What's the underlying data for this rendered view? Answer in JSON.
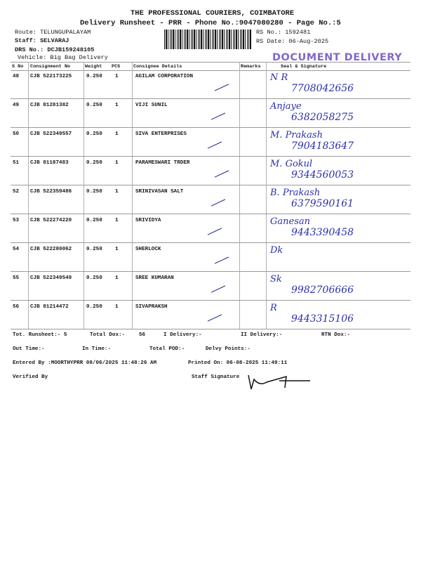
{
  "header": {
    "company": "THE PROFESSIONAL COURIERS, COIMBATORE",
    "subtitle": "Delivery Runsheet - PRR - Phone No.:9047080280 - Page No.:5",
    "route": "Route: TELUNGUPALAYAM",
    "staff_label": "Staff:",
    "staff": "SELVARAJ",
    "drs": "DRS No.: DCJB159248105",
    "vehicle": "Vehicle: Big Bag Delivery",
    "rs_no": "RS No.: 1592481",
    "rs_date": "RS Date: 06-Aug-2025",
    "stamp": "DOCUMENT DELIVERY"
  },
  "table": {
    "columns": [
      "S No",
      "Consignment No",
      "Weight",
      "PCS",
      "Consignee Details",
      "Remarks",
      "Seal & Signature"
    ],
    "rows": [
      {
        "sno": "48",
        "cn": "CJB 522173225",
        "weight": "0.250",
        "pcs": "1",
        "consignee": "AGILAM CORPORATION",
        "hand_name": "N R",
        "hand_phone": "7708042656"
      },
      {
        "sno": "49",
        "cn": "CJB 81281382",
        "weight": "0.250",
        "pcs": "1",
        "consignee": "VIJI SUNIL",
        "hand_name": "Anjaye",
        "hand_phone": "6382058275"
      },
      {
        "sno": "50",
        "cn": "CJB 522349557",
        "weight": "0.250",
        "pcs": "1",
        "consignee": "SIVA ENTERPRISES",
        "hand_name": "M. Prakash",
        "hand_phone": "7904183647"
      },
      {
        "sno": "51",
        "cn": "CJB 81187483",
        "weight": "0.250",
        "pcs": "1",
        "consignee": "PARAMESWARI TRDER",
        "hand_name": "M. Gokul",
        "hand_phone": "9344560053"
      },
      {
        "sno": "52",
        "cn": "CJB 522359486",
        "weight": "0.250",
        "pcs": "1",
        "consignee": "SRINIVASAN SALT",
        "hand_name": "B. Prakash",
        "hand_phone": "6379590161"
      },
      {
        "sno": "53",
        "cn": "CJB 522274220",
        "weight": "0.250",
        "pcs": "1",
        "consignee": "SRIVIDYA",
        "hand_name": "Ganesan",
        "hand_phone": "9443390458"
      },
      {
        "sno": "54",
        "cn": "CJB 522280062",
        "weight": "0.250",
        "pcs": "1",
        "consignee": "SHERLOCK",
        "hand_name": "Dk",
        "hand_phone": ""
      },
      {
        "sno": "55",
        "cn": "CJB 522349549",
        "weight": "0.250",
        "pcs": "1",
        "consignee": "SREE KUMARAN",
        "hand_name": "Sk",
        "hand_phone": "9982706666"
      },
      {
        "sno": "56",
        "cn": "CJB 81214472",
        "weight": "0.250",
        "pcs": "1",
        "consignee": "SIVAPRAKSH",
        "hand_name": "R",
        "hand_phone": "9443315106"
      }
    ]
  },
  "footer": {
    "tot_runsheet": "Tot. Runsheet:- 5",
    "total_dox": "Total Dox:-",
    "total_dox_value": "56",
    "i_delivery": "I Delivery:-",
    "ii_delivery": "II Delivery:-",
    "rtn_dox": "RTN Dox:-",
    "out_time": "Out Time:-",
    "in_time": "In Time:-",
    "total_pod": "Total POD:-",
    "delvy_points": "Delvy Points:-",
    "entered_by": "Entered By :MOORTHYPRR 08/06/2025 11:48:26 AM",
    "printed_on": "Printed On: 06-08-2025 11:49:11",
    "verified_by": "Verified By",
    "staff_signature": "Staff Signature"
  }
}
